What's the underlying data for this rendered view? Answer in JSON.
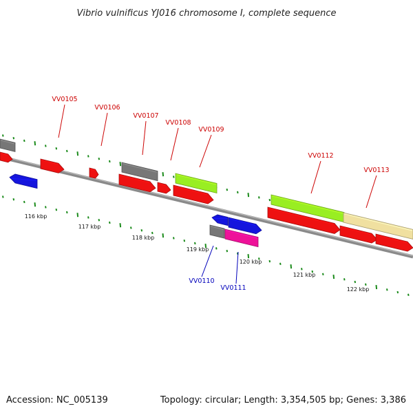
{
  "header": {
    "title": "Vibrio vulnificus YJ016 chromosome I, complete sequence"
  },
  "footer": {
    "accession": "Accession: NC_005139",
    "topology": "Topology: circular; Length: 3,354,505 bp; Genes: 3,386"
  },
  "colors": {
    "label_top": "#cc0000",
    "label_bottom": "#0000bb",
    "backbone": "#8a8a8a",
    "tick": "#1a8a1a"
  },
  "scale_labels": [
    "116 kbp",
    "117 kbp",
    "118 kbp",
    "119 kbp",
    "120 kbp",
    "121 kbp",
    "122 kbp"
  ],
  "gene_labels": [
    {
      "text": "VV0105",
      "side": "top"
    },
    {
      "text": "VV0106",
      "side": "top"
    },
    {
      "text": "VV0107",
      "side": "top"
    },
    {
      "text": "VV0108",
      "side": "top"
    },
    {
      "text": "VV0109",
      "side": "top"
    },
    {
      "text": "VV0112",
      "side": "top"
    },
    {
      "text": "VV0113",
      "side": "top"
    },
    {
      "text": "VV0110",
      "side": "bottom"
    },
    {
      "text": "VV0111",
      "side": "bottom"
    }
  ],
  "features": [
    {
      "name": "gray-block-edge",
      "color": "#777777"
    },
    {
      "name": "red-arrow-edge",
      "color": "#ee1111"
    },
    {
      "name": "blue-arrow-left",
      "color": "#1515dd"
    },
    {
      "name": "red-arrow-vv0105",
      "color": "#ee1111"
    },
    {
      "name": "red-arrow-vv0106",
      "color": "#ee1111"
    },
    {
      "name": "gray-block-vv0107",
      "color": "#777777"
    },
    {
      "name": "red-arrow-vv0107",
      "color": "#ee1111"
    },
    {
      "name": "red-arrow-vv0108",
      "color": "#ee1111"
    },
    {
      "name": "green-block-vv0109",
      "color": "#99ee22"
    },
    {
      "name": "red-arrow-vv0109",
      "color": "#ee1111"
    },
    {
      "name": "blue-arrow-vv0110",
      "color": "#1515dd"
    },
    {
      "name": "gray-block-vv0110",
      "color": "#777777"
    },
    {
      "name": "blue-arrow-vv0111",
      "color": "#1515dd"
    },
    {
      "name": "magenta-block-vv0111",
      "color": "#ee1199"
    },
    {
      "name": "green-block-vv0112",
      "color": "#99ee22"
    },
    {
      "name": "red-arrow-vv0112",
      "color": "#ee1111"
    },
    {
      "name": "yellow-block-vv0113",
      "color": "#f0e0a0"
    },
    {
      "name": "red-arrow-vv0113",
      "color": "#ee1111"
    },
    {
      "name": "red-arrow-right-edge",
      "color": "#ee1111"
    }
  ]
}
